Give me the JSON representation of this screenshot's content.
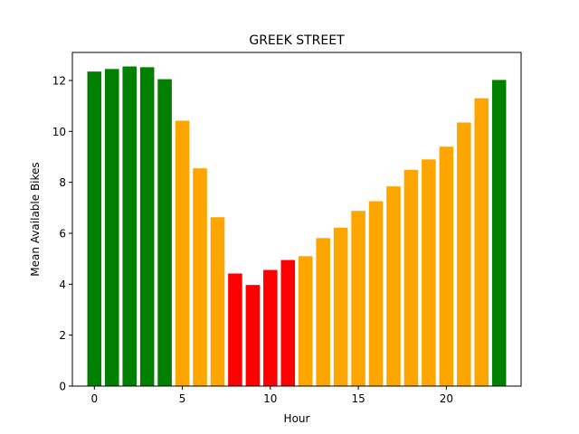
{
  "chart_data": {
    "type": "bar",
    "title": "GREEK STREET",
    "xlabel": "Hour",
    "ylabel": "Mean Available Bikes",
    "xlim": [
      -1.25,
      24.25
    ],
    "ylim": [
      0,
      13.1
    ],
    "xticks": [
      0,
      5,
      10,
      15,
      20
    ],
    "yticks": [
      0,
      2,
      4,
      6,
      8,
      10,
      12
    ],
    "grid": false,
    "x": [
      0,
      1,
      2,
      3,
      4,
      5,
      6,
      7,
      8,
      9,
      10,
      11,
      12,
      13,
      14,
      15,
      16,
      17,
      18,
      19,
      20,
      21,
      22,
      23
    ],
    "values": [
      12.35,
      12.45,
      12.55,
      12.52,
      12.05,
      10.42,
      8.55,
      6.63,
      4.42,
      3.97,
      4.56,
      4.95,
      5.1,
      5.81,
      6.22,
      6.88,
      7.26,
      7.84,
      8.49,
      8.9,
      9.4,
      10.35,
      11.3,
      12.02
    ],
    "colors": [
      "#008000",
      "#008000",
      "#008000",
      "#008000",
      "#008000",
      "#ffa500",
      "#ffa500",
      "#ffa500",
      "#ff0000",
      "#ff0000",
      "#ff0000",
      "#ff0000",
      "#ffa500",
      "#ffa500",
      "#ffa500",
      "#ffa500",
      "#ffa500",
      "#ffa500",
      "#ffa500",
      "#ffa500",
      "#ffa500",
      "#ffa500",
      "#ffa500",
      "#008000"
    ]
  }
}
